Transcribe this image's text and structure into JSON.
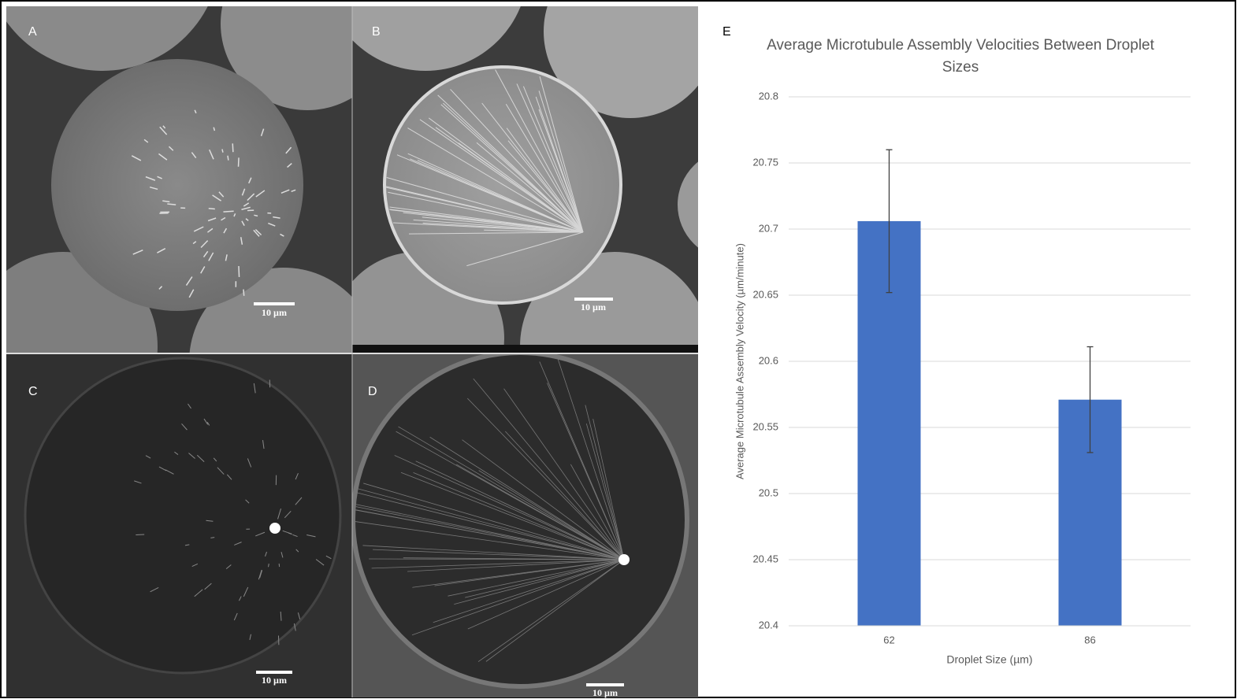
{
  "panels": [
    {
      "label": "A",
      "scale_bar": "10 µm"
    },
    {
      "label": "B",
      "scale_bar": "10 µm"
    },
    {
      "label": "C",
      "scale_bar": "10 µm"
    },
    {
      "label": "D",
      "scale_bar": "10 µm"
    }
  ],
  "chart_data": {
    "type": "bar",
    "panel_label": "E",
    "title": "Average Microtubule Assembly Velocities Between Droplet Sizes",
    "x_label": "Droplet Size (µm)",
    "y_label": "Average Microtubule Assembly Velocity (µm/minute)",
    "categories": [
      "62",
      "86"
    ],
    "values": [
      20.706,
      20.571
    ],
    "errors": [
      0.054,
      0.04
    ],
    "color": "#4472c4",
    "ylim": [
      20.4,
      20.8
    ],
    "yticks": [
      20.4,
      20.45,
      20.5,
      20.55,
      20.6,
      20.65,
      20.7,
      20.75,
      20.8
    ],
    "grid": true
  }
}
